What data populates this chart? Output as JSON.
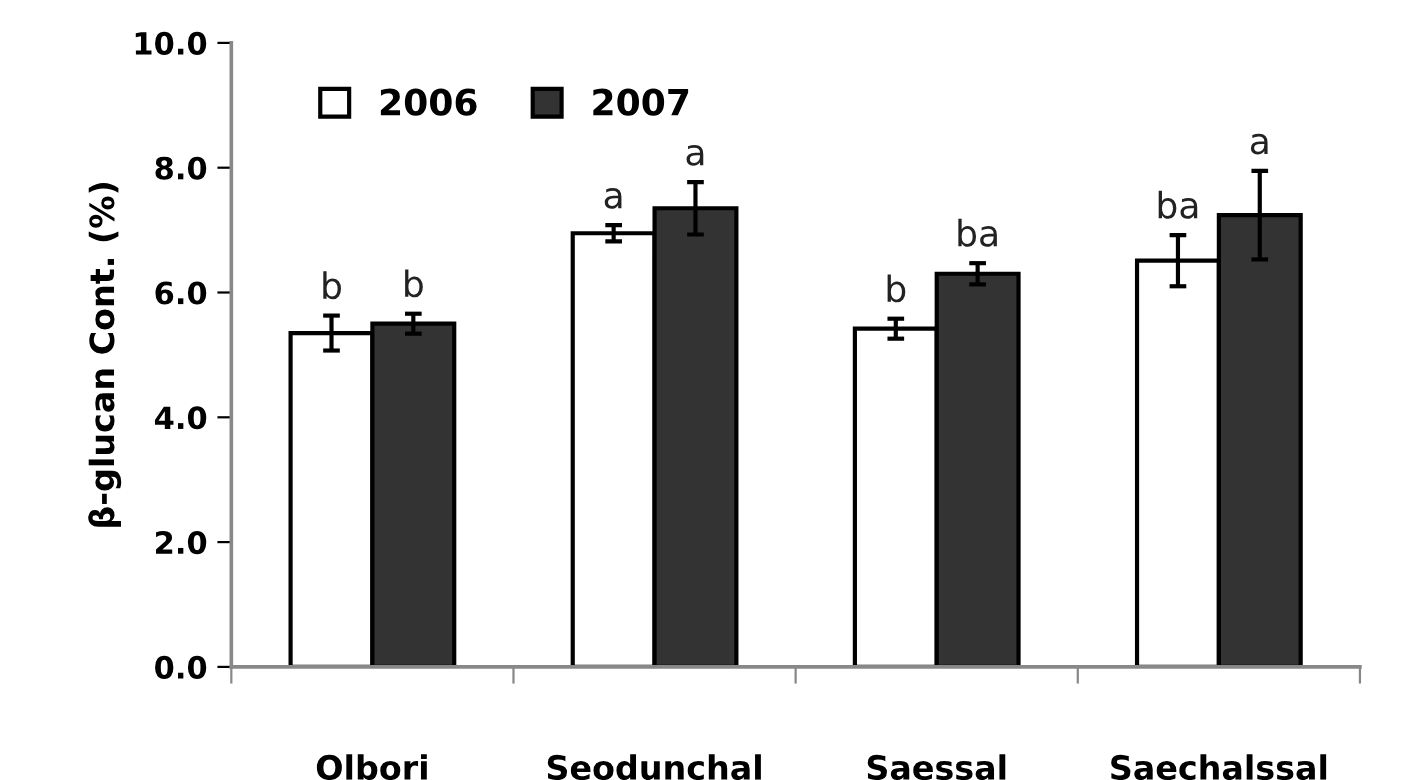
{
  "chart_data": {
    "type": "bar",
    "ylabel": "β-glucan Cont. (%)",
    "categories": [
      "Olbori",
      "Seodunchal",
      "Saessal",
      "Saechalssal"
    ],
    "series": [
      {
        "name": "2006",
        "color": "#ffffff",
        "values": [
          5.35,
          6.95,
          5.42,
          6.51
        ],
        "errors": [
          0.28,
          0.13,
          0.16,
          0.41
        ],
        "value_labels": [
          "b",
          "a",
          "b",
          "ba"
        ]
      },
      {
        "name": "2007",
        "color": "#333333",
        "values": [
          5.5,
          7.35,
          6.3,
          7.24
        ],
        "errors": [
          0.16,
          0.42,
          0.17,
          0.71
        ],
        "value_labels": [
          "b",
          "a",
          "ba",
          "a"
        ]
      }
    ],
    "ylim": [
      0,
      10
    ],
    "yticks": [
      {
        "value": 0,
        "label": "0.0"
      },
      {
        "value": 2,
        "label": "2.0"
      },
      {
        "value": 4,
        "label": "4.0"
      },
      {
        "value": 6,
        "label": "6.0"
      },
      {
        "value": 8,
        "label": "8.0"
      },
      {
        "value": 10,
        "label": "10.0"
      }
    ],
    "grid": false,
    "legend": "top left"
  }
}
